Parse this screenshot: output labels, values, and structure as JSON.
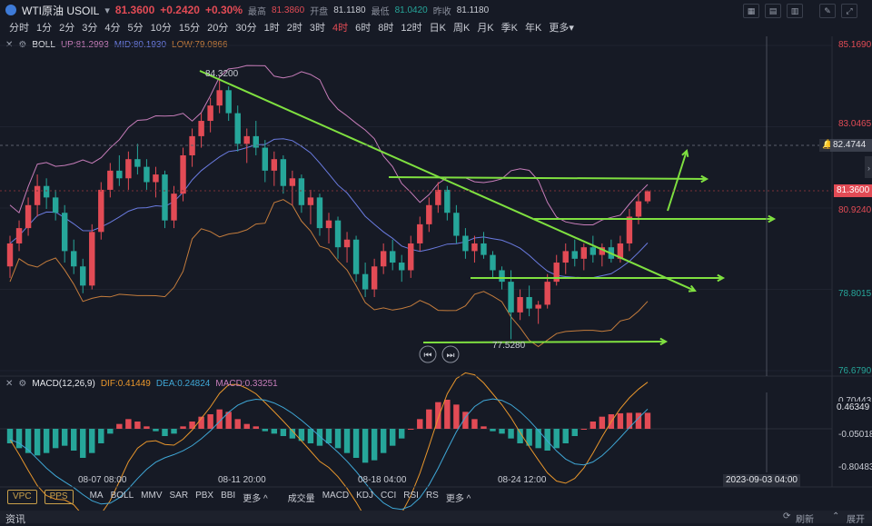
{
  "header": {
    "symbol": "WTI原油 USOIL",
    "price": "81.3600",
    "change": "+0.2420",
    "change_pct": "+0.30%",
    "stats": [
      {
        "label": "最高",
        "value": "81.3860"
      },
      {
        "label": "开盘",
        "value": "81.1180"
      },
      {
        "label": "最低",
        "value": "81.0420"
      },
      {
        "label": "昨收",
        "value": "81.1180"
      }
    ]
  },
  "periods": [
    "分时",
    "1分",
    "2分",
    "3分",
    "4分",
    "5分",
    "10分",
    "15分",
    "20分",
    "30分",
    "1时",
    "2时",
    "3时",
    "4时",
    "6时",
    "8时",
    "12时",
    "日K",
    "周K",
    "月K",
    "季K",
    "年K",
    "更多"
  ],
  "active_period": "4时",
  "boll": {
    "name": "BOLL",
    "up": "UP:81.2993",
    "mid": "MID:80.1930",
    "low": "LOW:79.0866"
  },
  "macd": {
    "name": "MACD(12,26,9)",
    "dif": "DIF:0.41449",
    "dea": "DEA:0.24824",
    "macd": "MACD:0.33251"
  },
  "price_axis": [
    "85.1690",
    "83.0465",
    "80.9240",
    "78.8015",
    "76.6790"
  ],
  "price_tags": {
    "hover": "82.4744",
    "current": "81.3600"
  },
  "macd_axis": [
    "0.70443",
    "0.46349",
    "-0.05018",
    "-0.80483"
  ],
  "annotations": {
    "high": "84.3200",
    "low": "77.5280"
  },
  "time_axis": [
    "08-07 08:00",
    "08-11 20:00",
    "08-18 04:00",
    "08-24 12:00"
  ],
  "crosshair_time": "2023-09-03 04:00",
  "bottom": {
    "pills": [
      "VPC",
      "PPS"
    ],
    "main_inds": [
      "MA",
      "BOLL",
      "MMV",
      "SAR",
      "PBX",
      "BBI",
      "更多 ^"
    ],
    "sub_inds": [
      "成交量",
      "MACD",
      "KDJ",
      "CCI",
      "RSI",
      "RS",
      "更多 ^"
    ]
  },
  "info_bar": {
    "left": "资讯",
    "refresh": "刷新",
    "expand": "展开"
  },
  "colors": {
    "up": "#e24b55",
    "down": "#26a69a",
    "trend": "#7fe040",
    "boll_up": "#c77dba",
    "boll_mid": "#6a7be0",
    "boll_low": "#c47c3c",
    "dif": "#e8962c",
    "dea": "#3fa7d6"
  },
  "chart_data": {
    "type": "candlestick",
    "y_range": [
      76.679,
      85.169
    ],
    "candles": [
      [
        79.4,
        80.2,
        79.1,
        80.0
      ],
      [
        80.0,
        80.6,
        79.8,
        80.4
      ],
      [
        80.4,
        81.2,
        80.2,
        81.0
      ],
      [
        81.0,
        81.8,
        80.7,
        81.5
      ],
      [
        81.5,
        81.7,
        80.9,
        81.2
      ],
      [
        81.2,
        81.4,
        80.6,
        80.8
      ],
      [
        80.8,
        81.0,
        79.5,
        79.8
      ],
      [
        79.8,
        80.1,
        79.2,
        79.4
      ],
      [
        79.4,
        79.6,
        78.7,
        78.9
      ],
      [
        78.9,
        80.5,
        78.8,
        80.3
      ],
      [
        80.3,
        81.6,
        80.1,
        81.4
      ],
      [
        81.4,
        82.1,
        81.2,
        81.9
      ],
      [
        81.9,
        82.3,
        81.5,
        81.7
      ],
      [
        81.7,
        82.4,
        81.4,
        82.2
      ],
      [
        82.2,
        82.6,
        81.8,
        82.0
      ],
      [
        82.0,
        82.2,
        81.4,
        81.6
      ],
      [
        81.6,
        82.0,
        81.2,
        81.8
      ],
      [
        81.8,
        81.9,
        80.4,
        80.6
      ],
      [
        80.6,
        81.5,
        80.4,
        81.3
      ],
      [
        81.3,
        82.5,
        81.1,
        82.3
      ],
      [
        82.3,
        83.0,
        82.0,
        82.8
      ],
      [
        82.8,
        83.4,
        82.5,
        83.2
      ],
      [
        83.2,
        83.8,
        82.9,
        83.6
      ],
      [
        83.6,
        84.3,
        83.4,
        84.0
      ],
      [
        84.0,
        84.1,
        83.2,
        83.4
      ],
      [
        83.4,
        83.6,
        82.4,
        82.6
      ],
      [
        82.6,
        83.0,
        82.1,
        82.8
      ],
      [
        82.8,
        83.2,
        82.3,
        82.5
      ],
      [
        82.5,
        82.7,
        81.6,
        81.9
      ],
      [
        81.9,
        82.4,
        81.5,
        82.2
      ],
      [
        82.2,
        82.3,
        81.3,
        81.5
      ],
      [
        81.5,
        81.9,
        81.0,
        81.7
      ],
      [
        81.7,
        81.8,
        80.8,
        81.0
      ],
      [
        81.0,
        81.4,
        80.5,
        81.2
      ],
      [
        81.2,
        81.3,
        80.2,
        80.4
      ],
      [
        80.4,
        80.8,
        80.0,
        80.6
      ],
      [
        80.6,
        80.7,
        79.6,
        79.9
      ],
      [
        79.9,
        80.3,
        79.5,
        80.1
      ],
      [
        80.1,
        80.2,
        79.0,
        79.2
      ],
      [
        79.2,
        79.5,
        78.6,
        78.8
      ],
      [
        78.8,
        79.6,
        78.6,
        79.4
      ],
      [
        79.4,
        80.0,
        79.2,
        79.8
      ],
      [
        79.8,
        80.1,
        79.3,
        79.5
      ],
      [
        79.5,
        79.7,
        79.0,
        79.3
      ],
      [
        79.3,
        80.2,
        79.1,
        80.0
      ],
      [
        80.0,
        80.7,
        79.8,
        80.5
      ],
      [
        80.5,
        81.2,
        80.3,
        81.0
      ],
      [
        81.0,
        81.6,
        80.8,
        81.4
      ],
      [
        81.4,
        81.5,
        80.6,
        80.8
      ],
      [
        80.8,
        81.0,
        80.0,
        80.2
      ],
      [
        80.2,
        80.4,
        79.6,
        79.8
      ],
      [
        79.8,
        80.2,
        79.5,
        80.0
      ],
      [
        80.0,
        80.3,
        79.6,
        79.7
      ],
      [
        79.7,
        79.8,
        79.1,
        79.3
      ],
      [
        79.3,
        79.4,
        78.8,
        79.0
      ],
      [
        79.0,
        79.3,
        77.5,
        78.2
      ],
      [
        78.2,
        78.8,
        78.0,
        78.6
      ],
      [
        78.6,
        78.9,
        78.1,
        78.3
      ],
      [
        78.3,
        78.5,
        77.9,
        78.4
      ],
      [
        78.4,
        79.2,
        78.3,
        79.0
      ],
      [
        79.0,
        79.7,
        78.9,
        79.5
      ],
      [
        79.5,
        80.0,
        79.2,
        79.8
      ],
      [
        79.8,
        80.1,
        79.4,
        79.6
      ],
      [
        79.6,
        80.0,
        79.3,
        79.9
      ],
      [
        79.9,
        80.2,
        79.5,
        79.7
      ],
      [
        79.7,
        80.0,
        79.4,
        79.9
      ],
      [
        79.9,
        80.1,
        79.5,
        79.6
      ],
      [
        79.6,
        80.2,
        79.5,
        80.0
      ],
      [
        80.0,
        80.9,
        79.8,
        80.7
      ],
      [
        80.7,
        81.3,
        80.5,
        81.1
      ],
      [
        81.1,
        81.39,
        81.04,
        81.36
      ]
    ],
    "macd_hist": [
      -0.3,
      -0.4,
      -0.5,
      -0.55,
      -0.5,
      -0.4,
      -0.35,
      -0.45,
      -0.6,
      -0.5,
      -0.3,
      -0.1,
      0.1,
      0.2,
      0.15,
      0.05,
      -0.05,
      -0.15,
      -0.1,
      0.05,
      0.15,
      0.25,
      0.3,
      0.4,
      0.35,
      0.2,
      0.1,
      0.05,
      -0.05,
      -0.1,
      -0.15,
      -0.2,
      -0.25,
      -0.3,
      -0.35,
      -0.3,
      -0.4,
      -0.5,
      -0.6,
      -0.7,
      -0.65,
      -0.5,
      -0.35,
      -0.2,
      0.0,
      0.2,
      0.4,
      0.55,
      0.6,
      0.5,
      0.35,
      0.2,
      0.05,
      -0.05,
      -0.1,
      -0.2,
      -0.3,
      -0.35,
      -0.4,
      -0.45,
      -0.4,
      -0.3,
      -0.15,
      0.0,
      0.15,
      0.25,
      0.3,
      0.32,
      0.33,
      0.33,
      0.33
    ],
    "macd_range": [
      -0.9,
      0.75
    ]
  }
}
